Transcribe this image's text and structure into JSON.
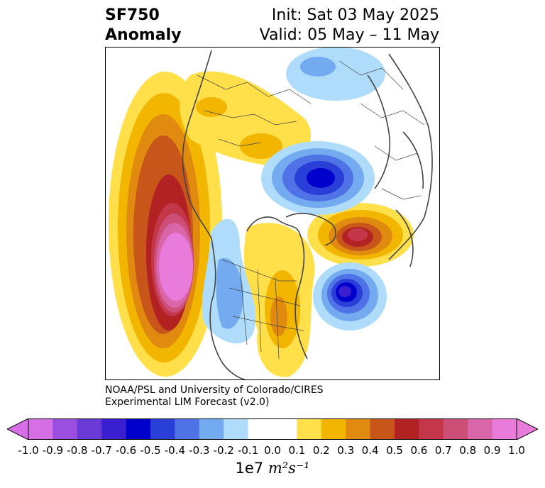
{
  "title": {
    "line1": "SF750",
    "line2": "Anomaly",
    "init": "Init: Sat 03 May 2025",
    "valid": "Valid: 05 May – 11 May"
  },
  "credit": {
    "line1": "NOAA/PSL and University of Colorado/CIRES",
    "line2": "Experimental LIM Forecast (v2.0)"
  },
  "colorbar": {
    "unit_prefix": "1e7 ",
    "unit_math": "m²s⁻¹",
    "ticks": [
      "-1.0",
      "-0.9",
      "-0.8",
      "-0.7",
      "-0.6",
      "-0.5",
      "-0.4",
      "-0.3",
      "-0.2",
      "-0.1",
      "0.0",
      "0.1",
      "0.2",
      "0.3",
      "0.4",
      "0.5",
      "0.6",
      "0.7",
      "0.8",
      "0.9",
      "1.0"
    ],
    "colors": [
      "#d66fe6",
      "#9b4fe0",
      "#6a3ad6",
      "#3a1fd0",
      "#0000cc",
      "#2a3fd8",
      "#4f72e6",
      "#74aaf0",
      "#aedcfa",
      "#ffffff",
      "#ffffff",
      "#ffe04a",
      "#f2b600",
      "#e08a10",
      "#c8561a",
      "#b22222",
      "#c4364a",
      "#cc4f78",
      "#d966a8",
      "#e97bdb"
    ],
    "under_color": "#d66fe6",
    "over_color": "#e97bdb"
  }
}
